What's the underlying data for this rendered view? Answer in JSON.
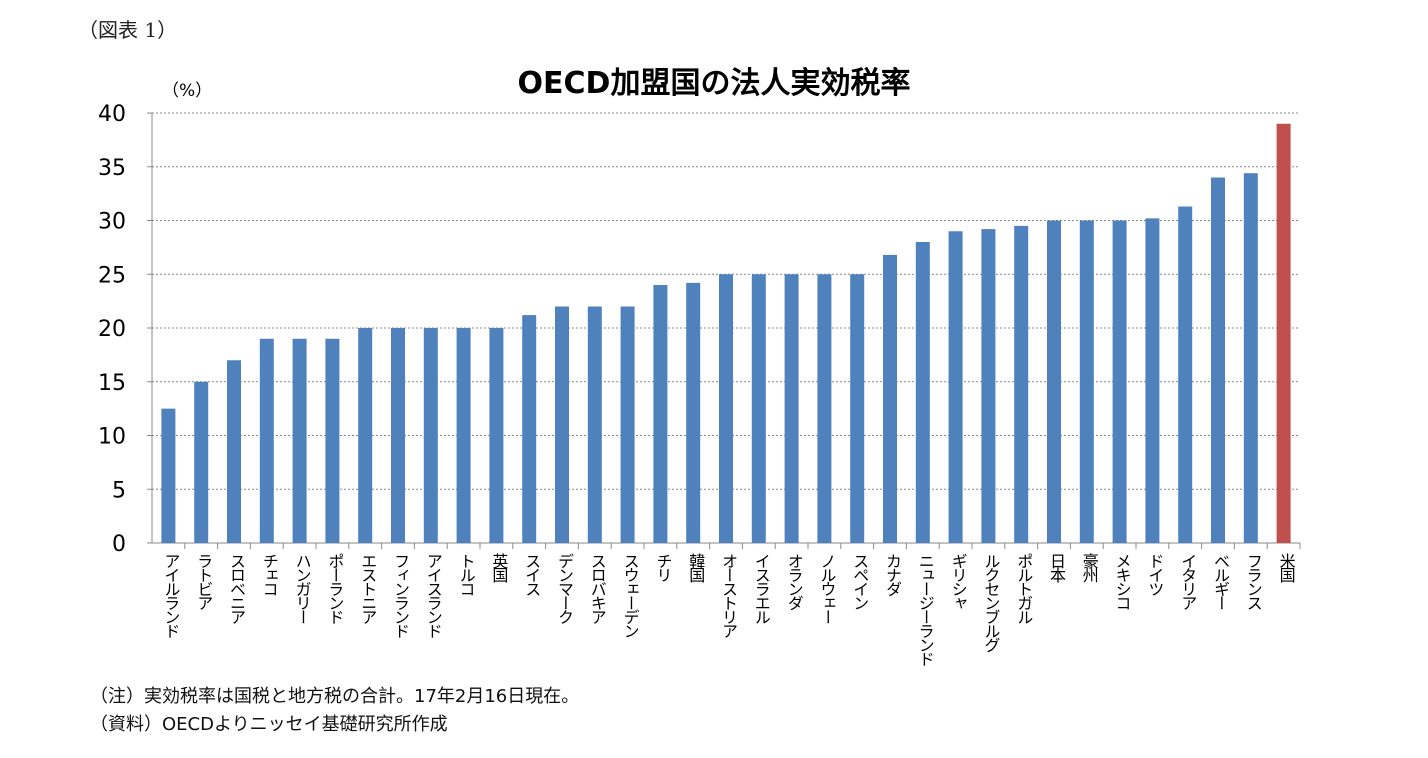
{
  "figure_label": "（図表 1）",
  "notes": [
    "（注）実効税率は国税と地方税の合計。17年2月16日現在。",
    "（資料）OECDよりニッセイ基礎研究所作成"
  ],
  "chart_data": {
    "type": "bar",
    "title": "OECD加盟国の法人実効税率",
    "ylabel": "（%）",
    "xlabel": "",
    "ylim": [
      0,
      40
    ],
    "yticks": [
      0,
      5,
      10,
      15,
      20,
      25,
      30,
      35,
      40
    ],
    "grid": true,
    "colors": {
      "default": "#4F81BD",
      "highlight": "#C0504D"
    },
    "highlight": "米国",
    "categories": [
      "アイルランド",
      "ラトビア",
      "スロベニア",
      "チェコ",
      "ハンガリー",
      "ポーランド",
      "エストニア",
      "フィンランド",
      "アイスランド",
      "トルコ",
      "英国",
      "スイス",
      "デンマーク",
      "スロバキア",
      "スウェーデン",
      "チリ",
      "韓国",
      "オーストリア",
      "イスラエル",
      "オランダ",
      "ノルウェー",
      "スペイン",
      "カナダ",
      "ニュージーランド",
      "ギリシャ",
      "ルクセンブルグ",
      "ポルトガル",
      "日本",
      "豪州",
      "メキシコ",
      "ドイツ",
      "イタリア",
      "ベルギー",
      "フランス",
      "米国"
    ],
    "values": [
      12.5,
      15,
      17,
      19,
      19,
      19,
      20,
      20,
      20,
      20,
      20,
      21.2,
      22,
      22,
      22,
      24,
      24.2,
      25,
      25,
      25,
      25,
      25,
      26.8,
      28,
      29,
      29.2,
      29.5,
      30,
      30,
      30,
      30.2,
      31.3,
      34,
      34.4,
      39
    ]
  }
}
